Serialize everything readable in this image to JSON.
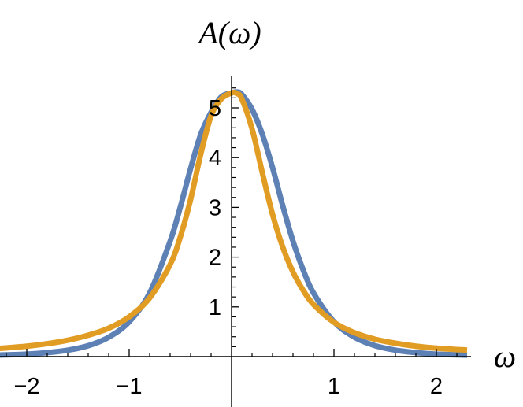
{
  "chart_data": {
    "type": "line",
    "title": "",
    "xlabel": "ω",
    "ylabel": "A(ω)",
    "xlim": [
      -2.3,
      2.3
    ],
    "ylim": [
      0,
      5.5
    ],
    "grid": false,
    "legend": "none",
    "x_ticks": [
      -2,
      -1,
      1,
      2
    ],
    "x_tick_labels": [
      "−2",
      "−1",
      "1",
      "2"
    ],
    "y_ticks": [
      1,
      2,
      3,
      4,
      5
    ],
    "y_tick_labels": [
      "1",
      "2",
      "3",
      "4",
      "5"
    ],
    "series": [
      {
        "color": "#5E81B5",
        "x": [
          -2.3,
          -2.0,
          -1.8,
          -1.6,
          -1.4,
          -1.2,
          -1.0,
          -0.8,
          -0.6,
          -0.5,
          -0.4,
          -0.3,
          -0.2,
          -0.1,
          0.0,
          0.05,
          0.1,
          0.2,
          0.3,
          0.4,
          0.5,
          0.6,
          0.7,
          0.8,
          1.0,
          1.2,
          1.4,
          1.6,
          1.8,
          2.0,
          2.3
        ],
        "y": [
          0.03,
          0.05,
          0.08,
          0.13,
          0.22,
          0.39,
          0.7,
          1.28,
          2.32,
          3.01,
          3.78,
          4.47,
          4.91,
          5.22,
          5.3,
          5.32,
          5.27,
          4.97,
          4.47,
          3.8,
          3.03,
          2.32,
          1.74,
          1.28,
          0.7,
          0.39,
          0.22,
          0.13,
          0.08,
          0.05,
          0.03
        ]
      },
      {
        "color": "#E19C24",
        "x": [
          -2.3,
          -2.0,
          -1.8,
          -1.6,
          -1.4,
          -1.2,
          -1.0,
          -0.8,
          -0.6,
          -0.5,
          -0.4,
          -0.3,
          -0.2,
          -0.1,
          0.0,
          0.05,
          0.1,
          0.2,
          0.3,
          0.4,
          0.5,
          0.6,
          0.7,
          0.8,
          1.0,
          1.2,
          1.4,
          1.6,
          1.8,
          2.0,
          2.3
        ],
        "y": [
          0.16,
          0.21,
          0.26,
          0.33,
          0.43,
          0.57,
          0.8,
          1.18,
          1.85,
          2.41,
          3.16,
          4.08,
          4.84,
          5.18,
          5.3,
          5.29,
          5.18,
          4.58,
          3.7,
          2.86,
          2.2,
          1.7,
          1.33,
          1.05,
          0.69,
          0.48,
          0.35,
          0.27,
          0.21,
          0.17,
          0.13
        ]
      }
    ]
  }
}
